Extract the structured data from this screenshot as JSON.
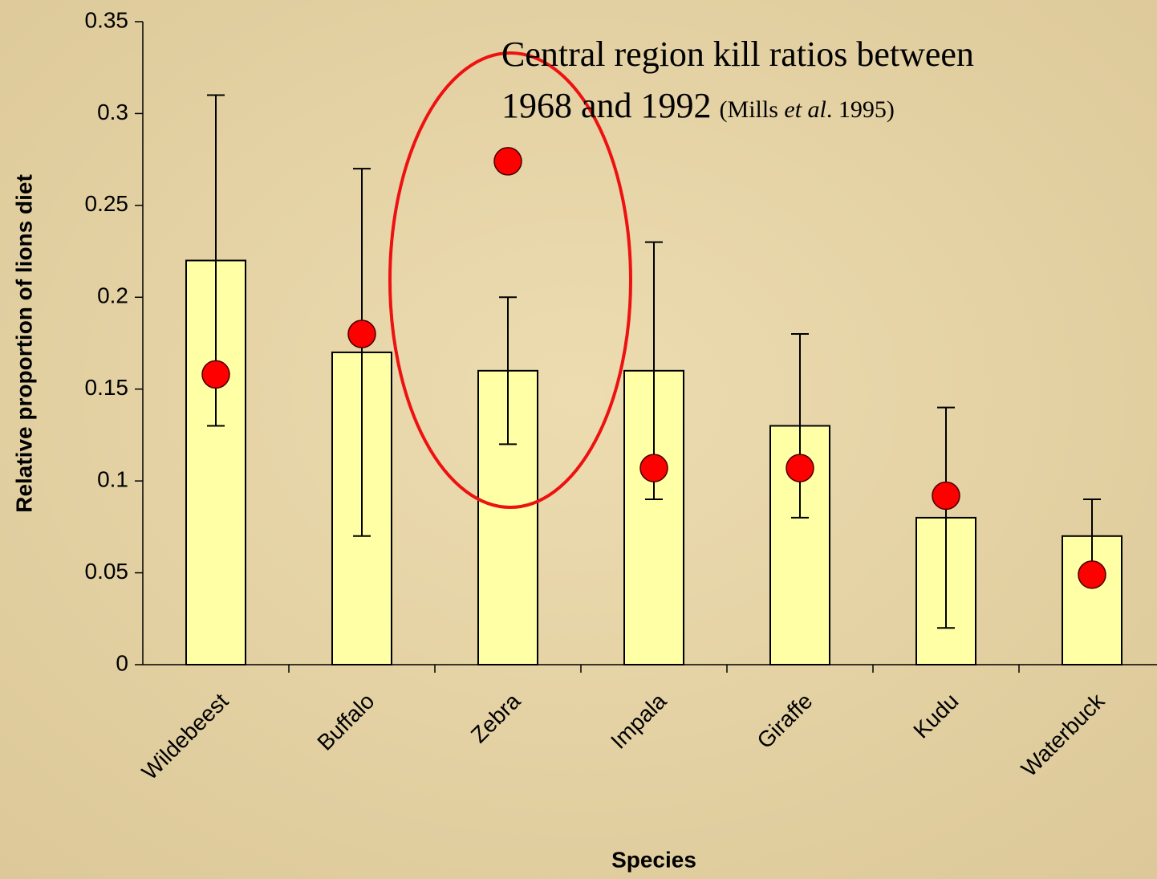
{
  "chart_data": {
    "type": "bar",
    "x_label": "Species",
    "y_label": "Relative proportion of lions diet",
    "categories": [
      "Wildebeest",
      "Buffalo",
      "Zebra",
      "Impala",
      "Giraffe",
      "Kudu",
      "Waterbuck"
    ],
    "values": [
      0.22,
      0.17,
      0.16,
      0.16,
      0.13,
      0.08,
      0.07
    ],
    "error_low": [
      0.13,
      0.07,
      0.12,
      0.09,
      0.08,
      0.02,
      0.05
    ],
    "error_high": [
      0.31,
      0.27,
      0.2,
      0.23,
      0.18,
      0.14,
      0.09
    ],
    "points": [
      0.158,
      0.18,
      0.274,
      0.107,
      0.107,
      0.092,
      0.049
    ],
    "color": "#ffffa6",
    "point_color": "#ff0000",
    "ylim": [
      0,
      0.35
    ],
    "yticks": [
      0,
      0.05,
      0.1,
      0.15,
      0.2,
      0.25,
      0.3,
      0.35
    ],
    "annotation": {
      "line1": "Central region kill ratios between",
      "line2": "1968 and 1992",
      "cite_pre": "(Mills ",
      "cite_em": "et al",
      "cite_post": ". 1995)"
    }
  }
}
